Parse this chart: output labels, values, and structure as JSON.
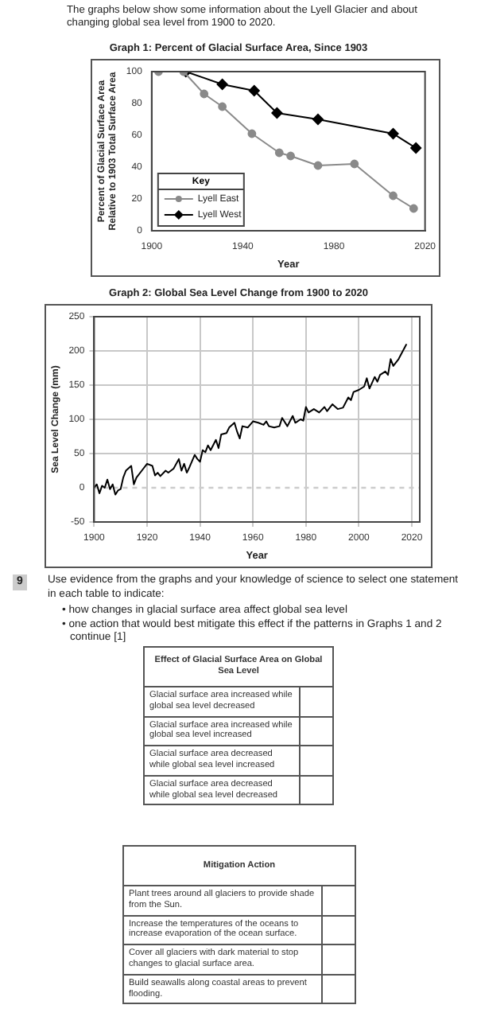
{
  "chart_data": [
    {
      "type": "line",
      "title": "Graph 1: Percent of Glacial Surface Area, Since 1903",
      "annotations": [
        "The graphs below show some information about the Lyell Glacier and about changing global sea level from 1900 to 2020."
      ],
      "xlabel": "Year",
      "ylabel": "Percent of Glacial Surface Area\nRelative to 1903 Total Surface Area",
      "legend_title": "Key",
      "legend": "bottom left",
      "grid": false,
      "xlim": [
        1900,
        2020
      ],
      "xticks": [
        1900,
        1940,
        1980,
        2020
      ],
      "ylim": [
        0,
        100
      ],
      "yticks": [
        0,
        20,
        40,
        60,
        80,
        100
      ],
      "series": [
        {
          "name": "Lyell East",
          "color": "#8a8a8a",
          "marker": "circle",
          "x": [
            1903,
            1914,
            1923,
            1931,
            1944,
            1956,
            1961,
            1973,
            1989,
            2006,
            2015
          ],
          "values": [
            100,
            100,
            86,
            78,
            61,
            49,
            47,
            41,
            42,
            22,
            14
          ]
        },
        {
          "name": "Lyell West",
          "color": "#000000",
          "marker": "diamond",
          "x": [
            1915,
            1931,
            1945,
            1955,
            1973,
            2006,
            2016
          ],
          "values": [
            100,
            92,
            88,
            74,
            70,
            61,
            52
          ]
        }
      ]
    },
    {
      "type": "line",
      "title": "Graph 2: Global Sea Level Change from 1900 to 2020",
      "xlabel": "Year",
      "ylabel": "Sea Level Change (mm)",
      "grid": true,
      "marker": "none",
      "xlim": [
        1900,
        2023
      ],
      "xticks": [
        1900,
        1920,
        1940,
        1960,
        1980,
        2000,
        2020
      ],
      "ylim": [
        -50,
        250
      ],
      "yticks": [
        -50,
        0,
        50,
        100,
        150,
        200,
        250
      ],
      "ref_lines": [
        {
          "axis": "y",
          "value": 0,
          "color": "#cccccc",
          "line_style": "dashed"
        }
      ],
      "series": [
        {
          "color": "#000000",
          "x": [
            1900,
            1901,
            1902,
            1903,
            1904,
            1905,
            1906,
            1907,
            1908,
            1909,
            1910,
            1911,
            1912,
            1914,
            1915,
            1916,
            1918,
            1920,
            1922,
            1923,
            1924,
            1925,
            1927,
            1928,
            1930,
            1932,
            1933,
            1934,
            1935,
            1936,
            1938,
            1939,
            1940,
            1941,
            1942,
            1943,
            1944,
            1946,
            1947,
            1948,
            1950,
            1951,
            1953,
            1954,
            1955,
            1956,
            1958,
            1960,
            1962,
            1964,
            1965,
            1966,
            1968,
            1970,
            1971,
            1973,
            1975,
            1976,
            1978,
            1979,
            1980,
            1981,
            1983,
            1985,
            1987,
            1988,
            1990,
            1992,
            1994,
            1996,
            1997,
            1998,
            2000,
            2002,
            2003,
            2004,
            2006,
            2007,
            2008,
            2010,
            2011,
            2012,
            2013,
            2015,
            2018
          ],
          "values": [
            0,
            5,
            -8,
            3,
            0,
            12,
            -2,
            5,
            -10,
            -4,
            -2,
            15,
            25,
            32,
            5,
            15,
            25,
            35,
            32,
            18,
            22,
            17,
            25,
            22,
            28,
            42,
            25,
            35,
            22,
            30,
            48,
            42,
            38,
            55,
            52,
            62,
            55,
            70,
            58,
            78,
            80,
            88,
            95,
            82,
            72,
            90,
            88,
            97,
            95,
            92,
            97,
            90,
            88,
            90,
            102,
            90,
            105,
            95,
            100,
            98,
            118,
            110,
            115,
            110,
            118,
            112,
            122,
            115,
            117,
            132,
            128,
            140,
            143,
            148,
            160,
            145,
            162,
            155,
            165,
            170,
            165,
            188,
            178,
            188,
            210
          ]
        }
      ]
    },
    {
      "type": "other",
      "annotations": [
        "9",
        "Use evidence from the graphs and your knowledge of science to select one statement in each table to indicate:",
        "• how changes in glacial surface area affect global sea level",
        "• one action that would best mitigate this effect if the patterns in Graphs 1 and 2 continue   [1]"
      ]
    },
    {
      "type": "other",
      "title": "Effect of Glacial Surface Area on Global Sea Level",
      "categories": [
        "Glacial surface area increased while global sea level decreased",
        "Glacial surface area increased while global sea level increased",
        "Glacial surface area decreased while global sea level increased",
        "Glacial surface area decreased while global sea level decreased"
      ]
    },
    {
      "type": "other",
      "title": "Mitigation Action",
      "categories": [
        "Plant trees around all glaciers to provide shade from the Sun.",
        "Increase the temperatures of the oceans to increase evaporation of the ocean surface.",
        "Cover all glaciers with dark material to stop changes to glacial surface area.",
        "Build seawalls along coastal areas to prevent flooding."
      ]
    }
  ]
}
